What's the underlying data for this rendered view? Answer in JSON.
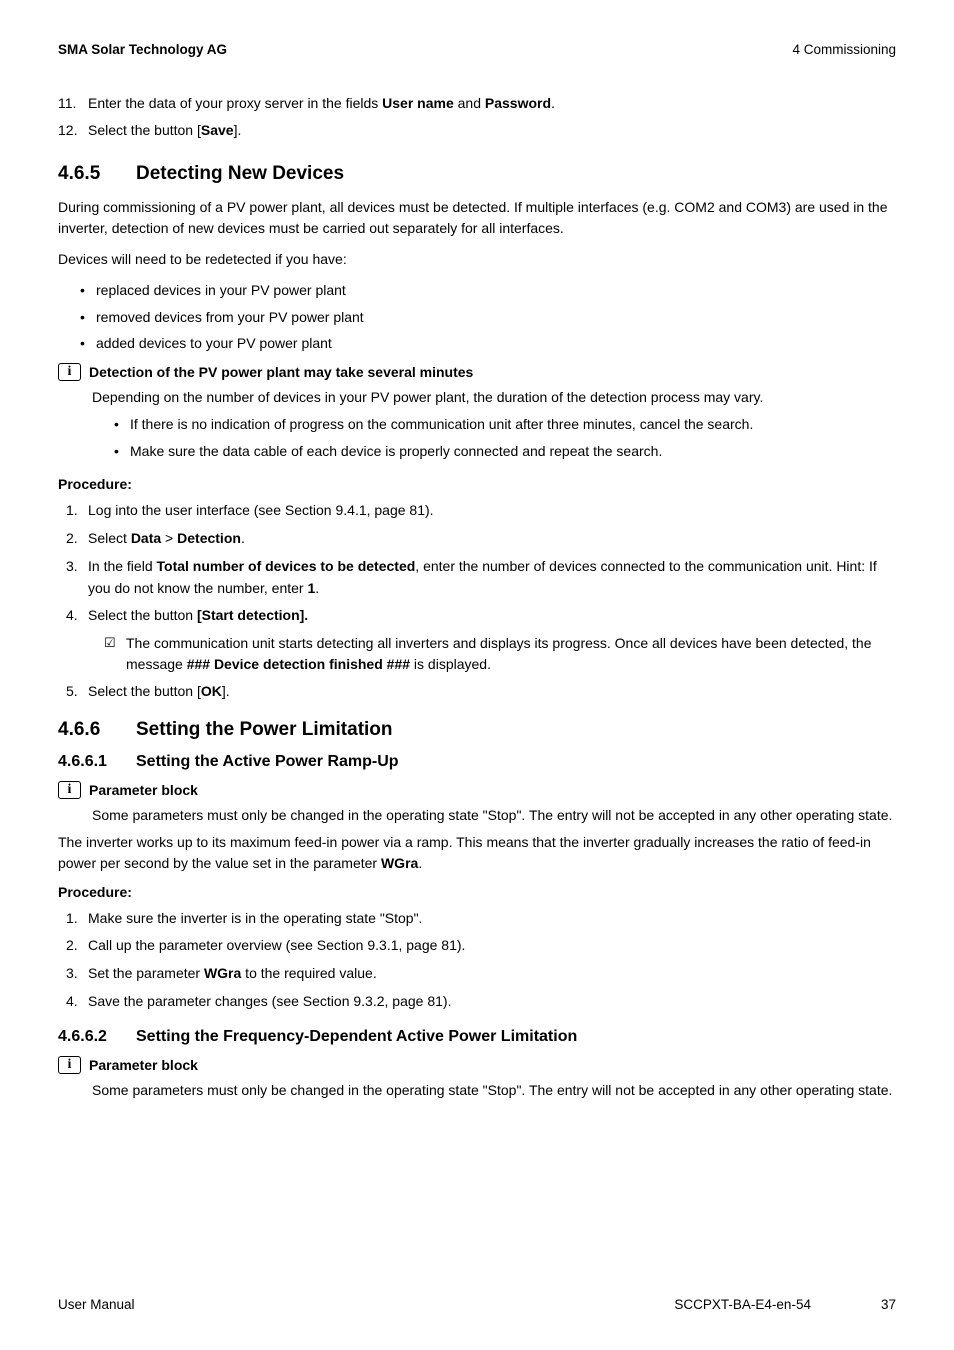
{
  "header": {
    "left": "SMA Solar Technology AG",
    "right": "4 Commissioning"
  },
  "continued_steps": [
    {
      "num": "11.",
      "pre": "Enter the data of your proxy server in the fields ",
      "b1": "User name",
      "mid": " and ",
      "b2": "Password",
      "post": "."
    },
    {
      "num": "12.",
      "pre": "Select the button [",
      "b1": "Save",
      "post": "]."
    }
  ],
  "s465": {
    "num": "4.6.5",
    "title": "Detecting New Devices",
    "p1": "During commissioning of a PV power plant, all devices must be detected. If multiple interfaces (e.g. COM2 and COM3) are used in the inverter, detection of new devices must be carried out separately for all interfaces.",
    "p2": "Devices will need to be redetected if you have:",
    "bullets": [
      "replaced devices in your PV power plant",
      "removed devices from your PV power plant",
      "added devices to your PV power plant"
    ],
    "note_title": "Detection of the PV power plant may take several minutes",
    "note_body": "Depending on the number of devices in your PV power plant, the duration of the detection process may vary.",
    "note_sub": [
      "If there is no indication of progress on the communication unit after three minutes, cancel the search.",
      "Make sure the data cable of each device is properly connected and repeat the search."
    ],
    "proc_label": "Procedure:",
    "steps": {
      "s1": "Log into the user interface (see Section 9.4.1, page 81).",
      "s2_pre": "Select ",
      "s2_b1": "Data",
      "s2_mid": " > ",
      "s2_b2": "Detection",
      "s2_post": ".",
      "s3_pre": "In the field ",
      "s3_b1": "Total number of devices to be detected",
      "s3_mid": ", enter the number of devices connected to the communication unit. Hint: If you do not know the number, enter ",
      "s3_b2": "1",
      "s3_post": ".",
      "s4_pre": "Select the button ",
      "s4_b1": "[Start detection].",
      "s4_check_pre": "The communication unit starts detecting all inverters and displays its progress. Once all devices have been detected, the message ",
      "s4_check_b": "### Device detection finished ###",
      "s4_check_post": " is displayed.",
      "s5_pre": "Select the button [",
      "s5_b1": "OK",
      "s5_post": "]."
    }
  },
  "s466": {
    "num": "4.6.6",
    "title": "Setting the Power Limitation"
  },
  "s4661": {
    "num": "4.6.6.1",
    "title": "Setting the Active Power Ramp-Up",
    "note_title": "Parameter block",
    "note_body": "Some parameters must only be changed in the operating state \"Stop\". The entry will not be accepted in any other operating state.",
    "p1_pre": "The inverter works up to its maximum feed-in power via a ramp. This means that the inverter gradually increases the ratio of feed-in power per second by the value set in the parameter ",
    "p1_b": "WGra",
    "p1_post": ".",
    "proc_label": "Procedure:",
    "steps": {
      "s1": "Make sure the inverter is in the operating state \"Stop\".",
      "s2": "Call up the parameter overview (see Section 9.3.1, page 81).",
      "s3_pre": "Set the parameter ",
      "s3_b": "WGra",
      "s3_post": " to the required value.",
      "s4": "Save the parameter changes (see Section 9.3.2, page 81)."
    }
  },
  "s4662": {
    "num": "4.6.6.2",
    "title": "Setting the Frequency-Dependent Active Power Limitation",
    "note_title": "Parameter block",
    "note_body": "Some parameters must only be changed in the operating state \"Stop\". The entry will not be accepted in any other operating state."
  },
  "footer": {
    "left": "User Manual",
    "doc": "SCCPXT-BA-E4-en-54",
    "page": "37"
  },
  "info_glyph": "i"
}
